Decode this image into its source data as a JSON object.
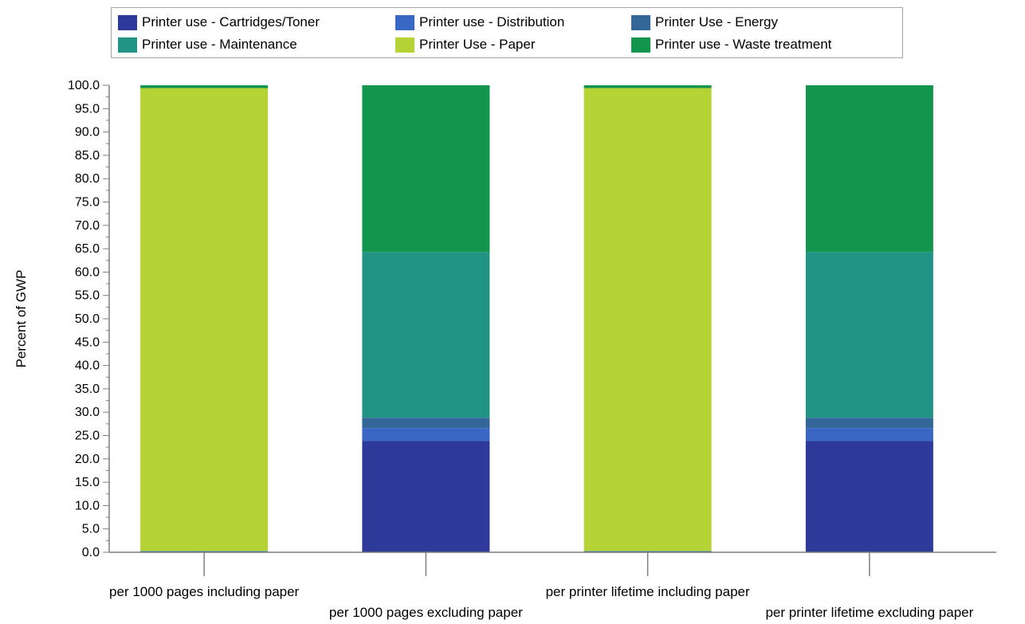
{
  "chart_data": {
    "type": "bar",
    "stacked": true,
    "title": "",
    "xlabel": "",
    "ylabel": "Percent of GWP",
    "ylim": [
      0,
      100
    ],
    "y_ticks": [
      "0.0",
      "5.0",
      "10.0",
      "15.0",
      "20.0",
      "25.0",
      "30.0",
      "35.0",
      "40.0",
      "45.0",
      "50.0",
      "55.0",
      "60.0",
      "65.0",
      "70.0",
      "75.0",
      "80.0",
      "85.0",
      "90.0",
      "95.0",
      "100.0"
    ],
    "legend_position": "top",
    "categories": [
      "per 1000 pages including paper",
      "per 1000 pages excluding paper",
      "per printer lifetime including paper",
      "per printer lifetime excluding paper"
    ],
    "series": [
      {
        "name": "Printer use - Cartridges/Toner",
        "color": "#2e3a99",
        "values": [
          0.2,
          23.8,
          0.2,
          23.8
        ]
      },
      {
        "name": "Printer use - Distribution",
        "color": "#3a66c4",
        "values": [
          0.0,
          2.8,
          0.0,
          2.8
        ]
      },
      {
        "name": "Printer Use - Energy",
        "color": "#336699",
        "values": [
          0.0,
          2.2,
          0.0,
          2.2
        ]
      },
      {
        "name": "Printer use - Maintenance",
        "color": "#229485",
        "values": [
          0.1,
          35.5,
          0.1,
          35.5
        ]
      },
      {
        "name": "Printer Use - Paper",
        "color": "#b5d334",
        "values": [
          99.1,
          0.0,
          99.1,
          0.0
        ]
      },
      {
        "name": "Printer use - Waste treatment",
        "color": "#12964e",
        "values": [
          0.6,
          35.7,
          0.6,
          35.7
        ]
      }
    ]
  }
}
